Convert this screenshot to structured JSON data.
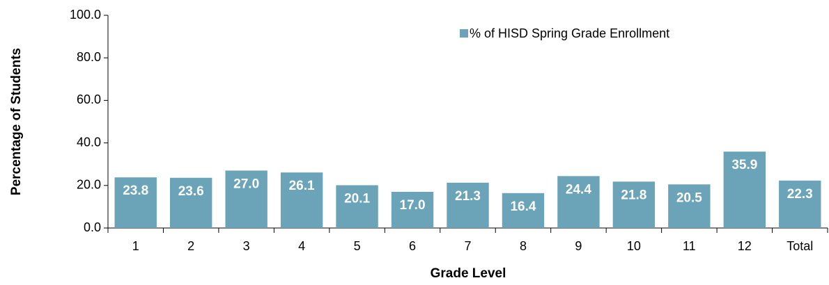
{
  "chart_data": {
    "type": "bar",
    "categories": [
      "1",
      "2",
      "3",
      "4",
      "5",
      "6",
      "7",
      "8",
      "9",
      "10",
      "11",
      "12",
      "Total"
    ],
    "series": [
      {
        "name": "% of HISD Spring Grade Enrollment",
        "color": "#6ba3b8",
        "values": [
          23.8,
          23.6,
          27.0,
          26.1,
          20.1,
          17.0,
          21.3,
          16.4,
          24.4,
          21.8,
          20.5,
          35.9,
          22.3
        ],
        "value_labels": [
          "23.8",
          "23.6",
          "27.0",
          "26.1",
          "20.1",
          "17.0",
          "21.3",
          "16.4",
          "24.4",
          "21.8",
          "20.5",
          "35.9",
          "22.3"
        ]
      }
    ],
    "ylim": [
      0,
      100
    ],
    "yticks": [
      {
        "value": 0,
        "label": "0.0"
      },
      {
        "value": 20,
        "label": "20.0"
      },
      {
        "value": 40,
        "label": "40.0"
      },
      {
        "value": 60,
        "label": "60.0"
      },
      {
        "value": 80,
        "label": "80.0"
      },
      {
        "value": 100,
        "label": "100.0"
      }
    ],
    "x_label": "Grade Level",
    "y_label": "Percentage of Students",
    "legend": "top-right",
    "grid": false
  }
}
